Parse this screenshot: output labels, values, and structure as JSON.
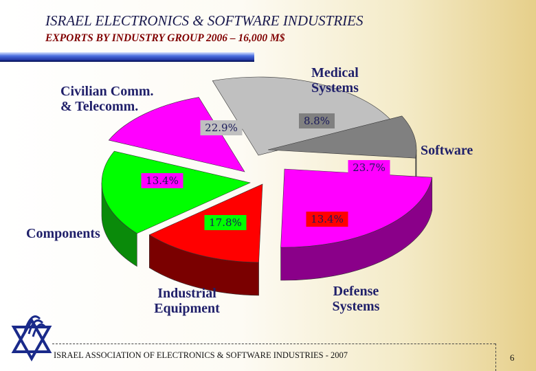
{
  "header": {
    "title": "ISRAEL ELECTRONICS & SOFTWARE INDUSTRIES",
    "subtitle": "EXPORTS BY INDUSTRY GROUP   2006 – 16,000 M$"
  },
  "chart_data": {
    "type": "pie",
    "three_d": true,
    "categories": [
      "Civilian Comm. & Telecomm.",
      "Medical Systems",
      "Software",
      "Defense Systems",
      "Industrial Equipment",
      "Components"
    ],
    "label_lines": [
      [
        "Civilian Comm.",
        "& Telecomm."
      ],
      [
        "Medical",
        "Systems"
      ],
      [
        "Software"
      ],
      [
        "Defense",
        "Systems"
      ],
      [
        "Industrial",
        "Equipment"
      ],
      [
        "Components"
      ]
    ],
    "values": [
      22.9,
      8.8,
      23.7,
      13.4,
      17.8,
      13.4
    ],
    "value_labels": [
      "22.9%",
      "8.8%",
      "23.7%",
      "13.4%",
      "17.8%",
      "13.4%"
    ],
    "colors": [
      "#c0c0c0",
      "#808080",
      "#ff00ff",
      "#ff0000",
      "#00ff00",
      "#ff00ff"
    ],
    "side_colors": [
      "#8a8a8a",
      "#555555",
      "#8a0089",
      "#7a0000",
      "#0a8a0a",
      "#8a0089"
    ],
    "legend": "none"
  },
  "footer": {
    "text": "ISRAEL ASSOCIATION OF ELECTRONICS & SOFTWARE INDUSTRIES  - 2007",
    "page_number": "6"
  }
}
